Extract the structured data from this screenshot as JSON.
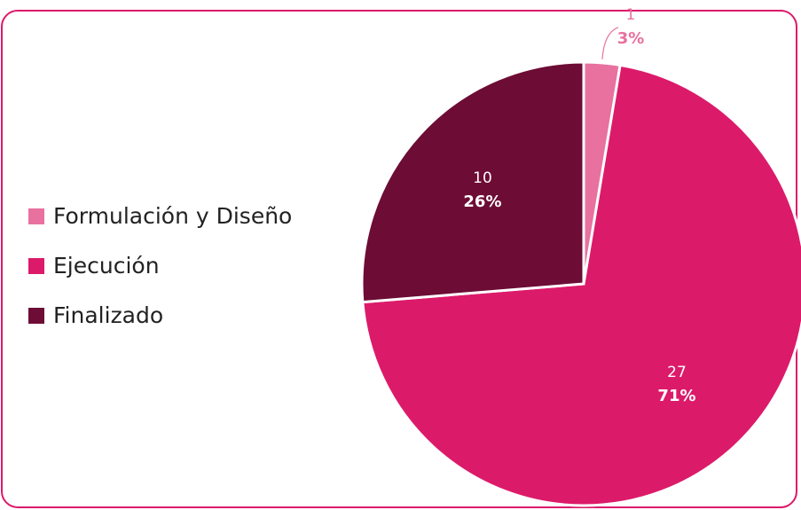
{
  "chart_data": {
    "type": "pie",
    "categories": [
      "Formulación y Diseño",
      "Ejecución",
      "Finalizado"
    ],
    "values": [
      1,
      27,
      10
    ],
    "percent_labels": [
      "3%",
      "71%",
      "26%"
    ],
    "colors": [
      "#e8719f",
      "#dc1a6a",
      "#6d0c35"
    ],
    "legend": "left"
  }
}
